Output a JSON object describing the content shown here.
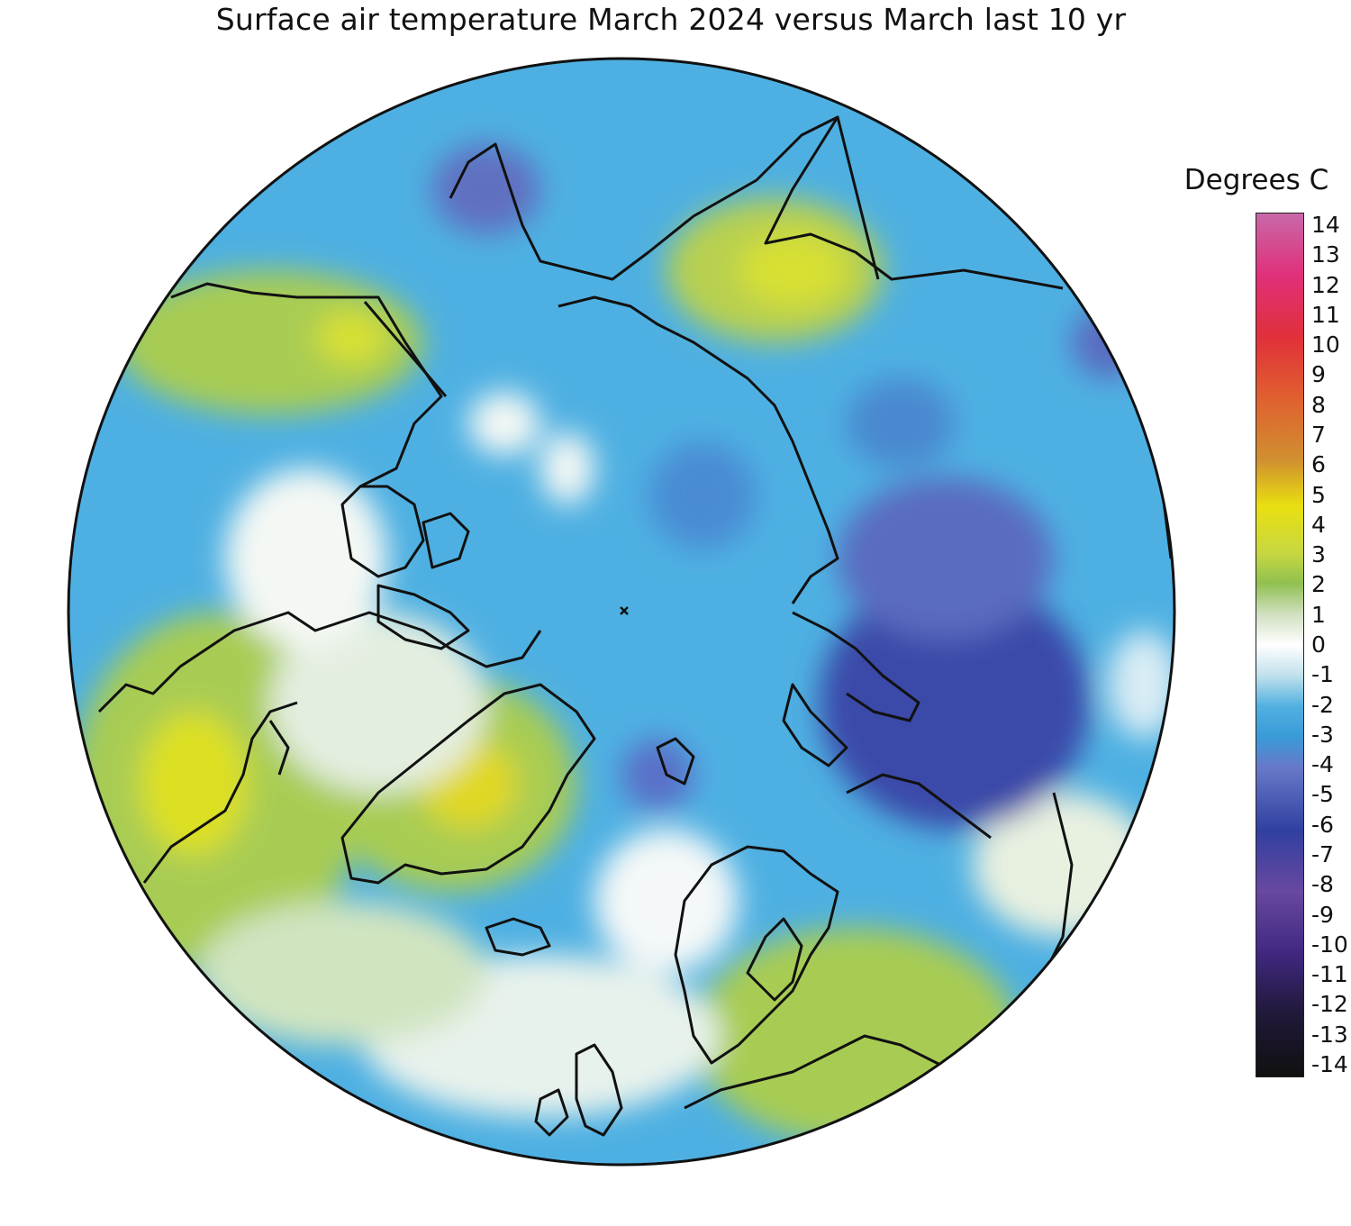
{
  "title": "Surface air temperature March 2024 versus March last 10 yr",
  "legend": {
    "title": "Degrees C",
    "ticks": [
      "14",
      "13",
      "12",
      "11",
      "10",
      "9",
      "8",
      "7",
      "6",
      "5",
      "4",
      "3",
      "2",
      "1",
      "0",
      "-1",
      "-2",
      "-3",
      "-4",
      "-5",
      "-6",
      "-7",
      "-8",
      "-9",
      "-10",
      "-11",
      "-12",
      "-13",
      "-14"
    ],
    "min": -14,
    "max": 14,
    "color_stops": [
      {
        "value": 14,
        "color": "#c868a8"
      },
      {
        "value": 12,
        "color": "#e0307a"
      },
      {
        "value": 10,
        "color": "#e0303a"
      },
      {
        "value": 8,
        "color": "#e06030"
      },
      {
        "value": 6,
        "color": "#d09030"
      },
      {
        "value": 4.5,
        "color": "#e8e010"
      },
      {
        "value": 3,
        "color": "#c8d840"
      },
      {
        "value": 2,
        "color": "#90c050"
      },
      {
        "value": 1,
        "color": "#d0e0c0"
      },
      {
        "value": 0,
        "color": "#ffffff"
      },
      {
        "value": -1,
        "color": "#c0e0ec"
      },
      {
        "value": -2,
        "color": "#50b0e0"
      },
      {
        "value": -3,
        "color": "#3a9ad8"
      },
      {
        "value": -4,
        "color": "#6878c8"
      },
      {
        "value": -6,
        "color": "#3040a0"
      },
      {
        "value": -8,
        "color": "#6848a0"
      },
      {
        "value": -10,
        "color": "#402880"
      },
      {
        "value": -12,
        "color": "#201838"
      },
      {
        "value": -14,
        "color": "#101010"
      }
    ]
  },
  "map": {
    "projection": "north polar stereographic",
    "background_anomaly_color": "#4eb0e2"
  }
}
